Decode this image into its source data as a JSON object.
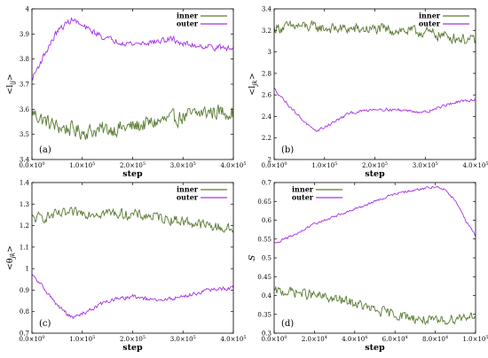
{
  "colors": {
    "inner": "#5a7a33",
    "outer": "#a633e6"
  },
  "chart_data": [
    {
      "panel": "(a)",
      "type": "line",
      "ylabel": "<l_ij>",
      "ylabel_main": "<l",
      "ylabel_sub": "ij",
      "ylabel_end": ">",
      "xlabel": "step",
      "xlim": [
        0,
        400000
      ],
      "ylim": [
        3.4,
        4.0
      ],
      "yticks": [
        "3.4",
        "3.5",
        "3.6",
        "3.7",
        "3.8",
        "3.9",
        "4"
      ],
      "xticks": [
        {
          "m": "0.0",
          "e": "0"
        },
        {
          "m": "1.0",
          "e": "5"
        },
        {
          "m": "2.0",
          "e": "5"
        },
        {
          "m": "3.0",
          "e": "5"
        },
        {
          "m": "4.0",
          "e": "5"
        }
      ],
      "legend_position": "top-right",
      "series": [
        {
          "name": "inner",
          "key": "inner",
          "noise": 0.028,
          "x": [
            0,
            20000,
            50000,
            80000,
            100000,
            150000,
            200000,
            250000,
            300000,
            350000,
            400000
          ],
          "y": [
            3.59,
            3.56,
            3.53,
            3.52,
            3.51,
            3.52,
            3.53,
            3.55,
            3.57,
            3.59,
            3.59
          ]
        },
        {
          "name": "outer",
          "key": "outer",
          "noise": 0.011,
          "x": [
            0,
            20000,
            50000,
            80000,
            100000,
            150000,
            200000,
            250000,
            280000,
            300000,
            350000,
            400000
          ],
          "y": [
            3.72,
            3.8,
            3.91,
            3.96,
            3.93,
            3.88,
            3.86,
            3.87,
            3.88,
            3.86,
            3.85,
            3.84
          ]
        }
      ]
    },
    {
      "panel": "(b)",
      "type": "line",
      "ylabel": "<l_jk>",
      "ylabel_main": "<l",
      "ylabel_sub": "jk",
      "ylabel_end": ">",
      "xlabel": "step",
      "xlim": [
        0,
        400000
      ],
      "ylim": [
        2.0,
        3.4
      ],
      "yticks": [
        "2",
        "2.2",
        "2.4",
        "2.6",
        "2.8",
        "3",
        "3.2",
        "3.4"
      ],
      "xticks": [
        {
          "m": "0.0",
          "e": "0"
        },
        {
          "m": "1.0",
          "e": "5"
        },
        {
          "m": "2.0",
          "e": "5"
        },
        {
          "m": "3.0",
          "e": "5"
        },
        {
          "m": "4.0",
          "e": "5"
        }
      ],
      "legend_position": "top-right",
      "series": [
        {
          "name": "inner",
          "key": "inner",
          "noise": 0.045,
          "x": [
            0,
            50000,
            100000,
            150000,
            200000,
            250000,
            300000,
            350000,
            400000
          ],
          "y": [
            3.22,
            3.24,
            3.22,
            3.21,
            3.21,
            3.2,
            3.18,
            3.14,
            3.1
          ]
        },
        {
          "name": "outer",
          "key": "outer",
          "noise": 0.012,
          "x": [
            0,
            20000,
            50000,
            80000,
            100000,
            150000,
            200000,
            250000,
            300000,
            350000,
            400000
          ],
          "y": [
            2.66,
            2.55,
            2.4,
            2.26,
            2.3,
            2.43,
            2.47,
            2.46,
            2.44,
            2.52,
            2.56
          ]
        }
      ]
    },
    {
      "panel": "(c)",
      "type": "line",
      "ylabel": "<θ_jk>",
      "ylabel_main": "<θ",
      "ylabel_sub": "jk",
      "ylabel_end": ">",
      "xlabel": "step",
      "xlim": [
        0,
        400000
      ],
      "ylim": [
        0.7,
        1.4
      ],
      "yticks": [
        "0.7",
        "0.8",
        "0.9",
        "1",
        "1.1",
        "1.2",
        "1.3",
        "1.4"
      ],
      "xticks": [
        {
          "m": "0.0",
          "e": "0"
        },
        {
          "m": "1.0",
          "e": "5"
        },
        {
          "m": "2.0",
          "e": "5"
        },
        {
          "m": "3.0",
          "e": "5"
        },
        {
          "m": "4.0",
          "e": "5"
        }
      ],
      "legend_position": "top-right",
      "series": [
        {
          "name": "inner",
          "key": "inner",
          "noise": 0.022,
          "x": [
            0,
            50000,
            100000,
            150000,
            200000,
            250000,
            300000,
            350000,
            400000
          ],
          "y": [
            1.23,
            1.25,
            1.26,
            1.26,
            1.25,
            1.24,
            1.22,
            1.2,
            1.18
          ]
        },
        {
          "name": "outer",
          "key": "outer",
          "noise": 0.008,
          "x": [
            0,
            20000,
            50000,
            80000,
            100000,
            150000,
            200000,
            250000,
            300000,
            350000,
            400000
          ],
          "y": [
            0.97,
            0.92,
            0.83,
            0.77,
            0.79,
            0.85,
            0.87,
            0.85,
            0.87,
            0.9,
            0.91
          ]
        }
      ]
    },
    {
      "panel": "(d)",
      "type": "line",
      "ylabel": "S",
      "ylabel_main": "S",
      "ylabel_sub": "",
      "ylabel_end": "",
      "xlabel": "step",
      "xlim": [
        0,
        100000
      ],
      "ylim": [
        0.3,
        0.7
      ],
      "yticks": [
        "0.3",
        "0.35",
        "0.4",
        "0.45",
        "0.5",
        "0.55",
        "0.6",
        "0.65",
        "0.7"
      ],
      "xticks": [
        {
          "m": "0.0",
          "e": "0"
        },
        {
          "m": "2.0",
          "e": "4"
        },
        {
          "m": "4.0",
          "e": "4"
        },
        {
          "m": "6.0",
          "e": "4"
        },
        {
          "m": "8.0",
          "e": "4"
        },
        {
          "m": "1.0",
          "e": "5"
        }
      ],
      "legend_position": "top-left",
      "series": [
        {
          "name": "inner",
          "key": "inner",
          "noise": 0.012,
          "x": [
            0,
            10000,
            20000,
            30000,
            40000,
            50000,
            60000,
            70000,
            80000,
            90000,
            100000
          ],
          "y": [
            0.41,
            0.41,
            0.4,
            0.39,
            0.38,
            0.36,
            0.35,
            0.34,
            0.33,
            0.34,
            0.35
          ]
        },
        {
          "name": "outer",
          "key": "outer",
          "noise": 0.003,
          "x": [
            0,
            10000,
            20000,
            30000,
            40000,
            50000,
            60000,
            70000,
            80000,
            85000,
            90000,
            95000,
            100000
          ],
          "y": [
            0.54,
            0.56,
            0.59,
            0.61,
            0.63,
            0.65,
            0.67,
            0.68,
            0.69,
            0.68,
            0.65,
            0.6,
            0.56
          ]
        }
      ]
    }
  ]
}
